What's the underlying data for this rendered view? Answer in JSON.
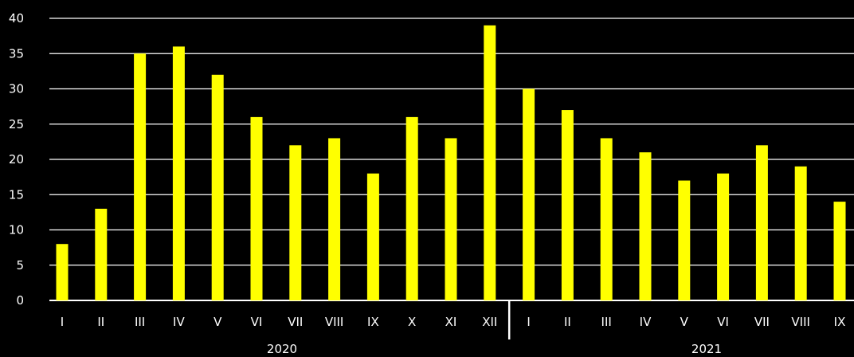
{
  "chart_data": {
    "type": "bar",
    "colors": {
      "background": "#000000",
      "bar": "#ffff00",
      "grid": "#ffffff",
      "text": "#ffffff"
    },
    "grid": true,
    "ylim": [
      0,
      40
    ],
    "yticks": [
      "0",
      "5",
      "10",
      "15",
      "20",
      "25",
      "30",
      "35",
      "40"
    ],
    "groups": [
      {
        "label": "2020",
        "categories": [
          "I",
          "II",
          "III",
          "IV",
          "V",
          "VI",
          "VII",
          "VIII",
          "IX",
          "X",
          "XI",
          "XII"
        ],
        "values": [
          8,
          13,
          35,
          36,
          32,
          26,
          22,
          23,
          18,
          26,
          23,
          39
        ]
      },
      {
        "label": "2021",
        "categories": [
          "I",
          "II",
          "III",
          "IV",
          "V",
          "VI",
          "VII",
          "VIII",
          "IX"
        ],
        "values": [
          30,
          27,
          23,
          21,
          17,
          18,
          22,
          19,
          14
        ]
      }
    ]
  }
}
